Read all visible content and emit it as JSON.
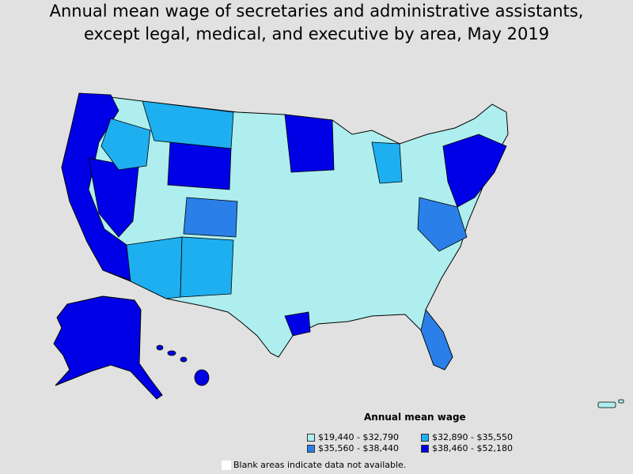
{
  "title": {
    "line1": "Annual mean wage of secretaries and administrative assistants,",
    "line2": "except legal, medical, and executive by area, May 2019"
  },
  "legend": {
    "title": "Annual mean wage",
    "items": [
      {
        "label": "$19,440 - $32,790",
        "color": "#aeeeee"
      },
      {
        "label": "$32,890 - $35,550",
        "color": "#1eaff0"
      },
      {
        "label": "$35,560 - $38,440",
        "color": "#2a80e8"
      },
      {
        "label": "$38,460 - $52,180",
        "color": "#0000e6"
      }
    ],
    "blank_note": "Blank areas indicate data not available."
  },
  "colors": {
    "background": "#e1e1e1",
    "class1": "#aeeeee",
    "class2": "#1eaff0",
    "class3": "#2a80e8",
    "class4": "#0000e6",
    "border": "#000000"
  }
}
